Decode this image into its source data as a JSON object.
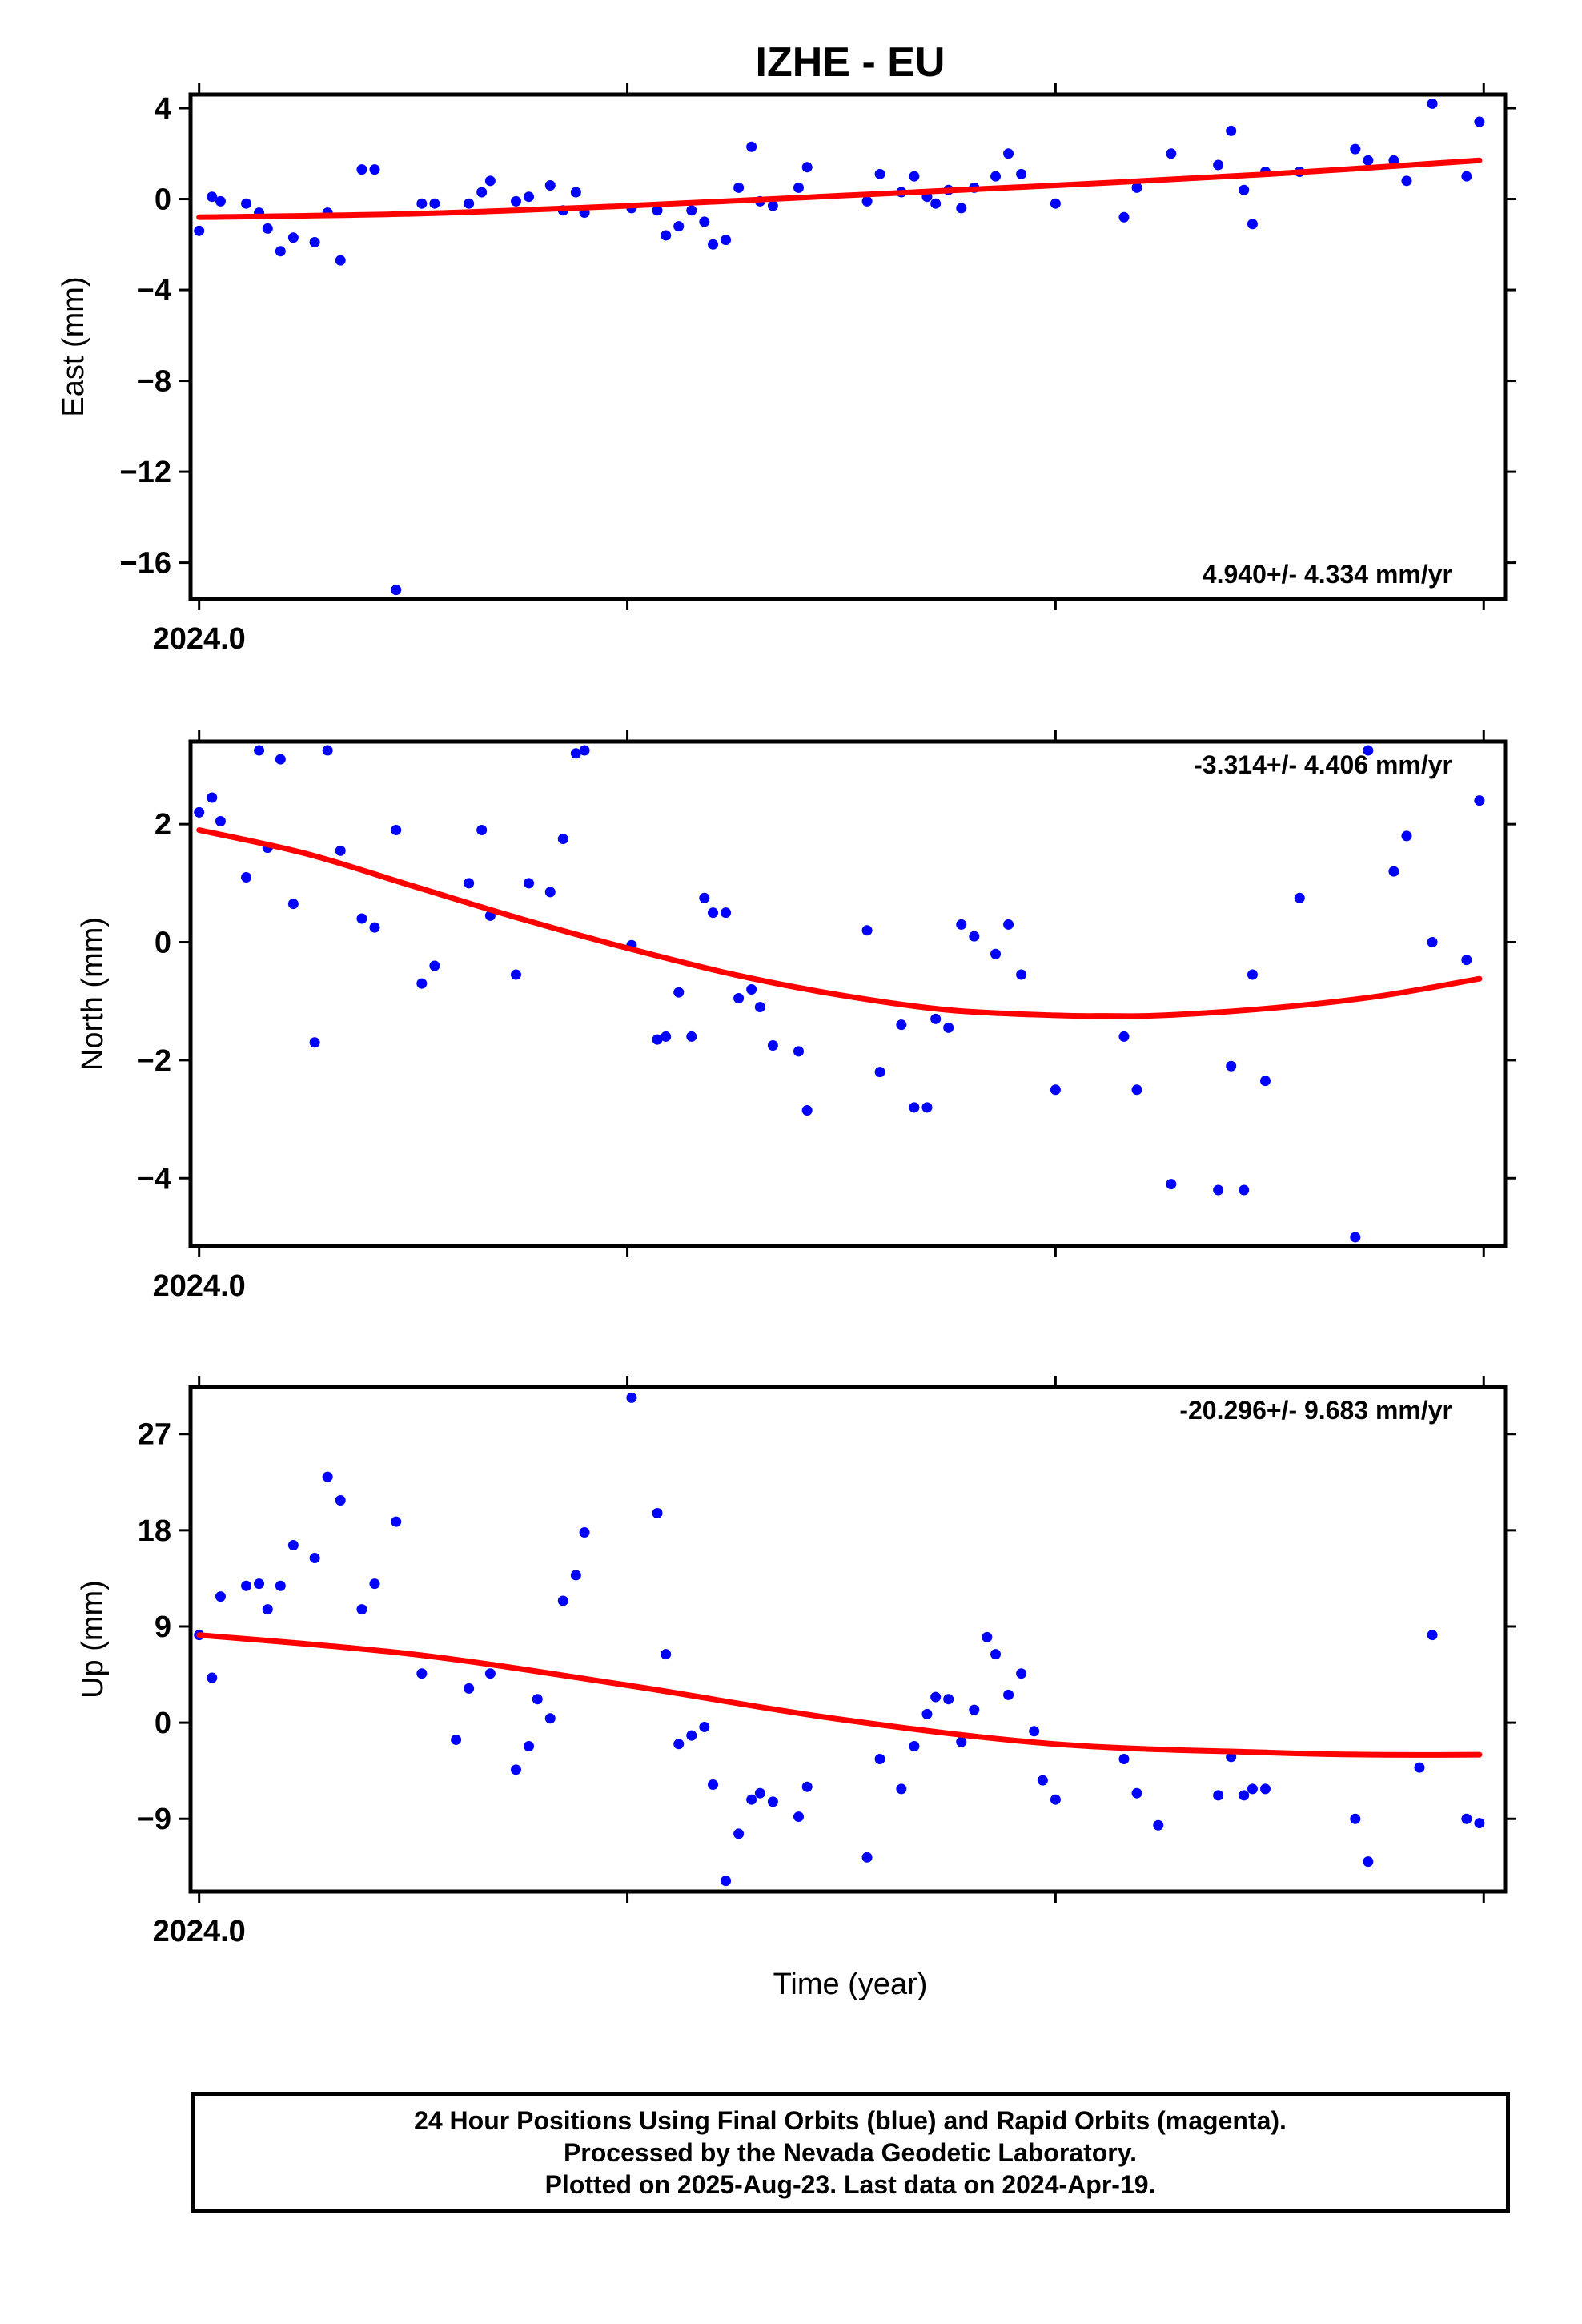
{
  "title": "IZHE - EU",
  "xlabel": "Time (year)",
  "x_tick_label": "2024.0",
  "footer": {
    "line1": "24 Hour Positions Using Final Orbits (blue) and Rapid Orbits (magenta).",
    "line2": "Processed by the Nevada Geodetic Laboratory.",
    "line3": "Plotted on 2025-Aug-23. Last data on 2024-Apr-19."
  },
  "colors": {
    "points": "#0000ff",
    "trend": "#ff0000",
    "frame": "#000000"
  },
  "chart_data": [
    {
      "type": "scatter",
      "ylabel": "East (mm)",
      "rate_label": "4.940+/- 4.334 mm/yr",
      "rate_position": "bottom-right",
      "xlim": [
        2023.998,
        2024.305
      ],
      "ylim": [
        -17.6,
        4.6
      ],
      "yticks": [
        4,
        0,
        -4,
        -8,
        -12,
        -16
      ],
      "ytick_labels": [
        "4",
        "0",
        "−4",
        "−8",
        "−12",
        "−16"
      ],
      "xticks": [
        2024.0,
        2024.1,
        2024.2,
        2024.3
      ],
      "x": [
        2024.0,
        2024.003,
        2024.005,
        2024.011,
        2024.014,
        2024.016,
        2024.019,
        2024.022,
        2024.027,
        2024.03,
        2024.033,
        2024.038,
        2024.041,
        2024.046,
        2024.052,
        2024.055,
        2024.063,
        2024.066,
        2024.068,
        2024.074,
        2024.077,
        2024.082,
        2024.085,
        2024.088,
        2024.09,
        2024.101,
        2024.107,
        2024.109,
        2024.112,
        2024.115,
        2024.118,
        2024.12,
        2024.123,
        2024.126,
        2024.129,
        2024.131,
        2024.134,
        2024.14,
        2024.142,
        2024.156,
        2024.159,
        2024.164,
        2024.167,
        2024.17,
        2024.172,
        2024.175,
        2024.178,
        2024.181,
        2024.186,
        2024.189,
        2024.192,
        2024.2,
        2024.216,
        2024.219,
        2024.227,
        2024.238,
        2024.241,
        2024.244,
        2024.246,
        2024.249,
        2024.257,
        2024.27,
        2024.273,
        2024.279,
        2024.282,
        2024.288,
        2024.296,
        2024.299
      ],
      "y": [
        -1.4,
        0.1,
        -0.1,
        -0.2,
        -0.6,
        -1.3,
        -2.3,
        -1.7,
        -1.9,
        -0.6,
        -2.7,
        1.3,
        1.3,
        -17.2,
        -0.2,
        -0.2,
        -0.2,
        0.3,
        0.8,
        -0.1,
        0.1,
        0.6,
        -0.5,
        0.3,
        -0.6,
        -0.4,
        -0.5,
        -1.6,
        -1.2,
        -0.5,
        -1.0,
        -2.0,
        -1.8,
        0.5,
        2.3,
        -0.1,
        -0.3,
        0.5,
        1.4,
        -0.1,
        1.1,
        0.3,
        1.0,
        0.1,
        -0.2,
        0.4,
        -0.4,
        0.5,
        1.0,
        2.0,
        1.1,
        -0.2,
        -0.8,
        0.5,
        2.0,
        1.5,
        3.0,
        0.4,
        -1.1,
        1.2,
        1.2,
        2.2,
        1.7,
        1.7,
        0.8,
        4.2,
        1.0,
        3.4
      ],
      "trend": {
        "x": [
          2024.0,
          2024.05,
          2024.1,
          2024.15,
          2024.2,
          2024.25,
          2024.299
        ],
        "y": [
          -0.8,
          -0.65,
          -0.3,
          0.15,
          0.6,
          1.1,
          1.7
        ]
      }
    },
    {
      "type": "scatter",
      "ylabel": "North (mm)",
      "rate_label": "-3.314+/- 4.406 mm/yr",
      "rate_position": "top-right",
      "xlim": [
        2023.998,
        2024.305
      ],
      "ylim": [
        -5.15,
        3.4
      ],
      "yticks": [
        2,
        0,
        -2,
        -4
      ],
      "ytick_labels": [
        "2",
        "0",
        "−2",
        "−4"
      ],
      "xticks": [
        2024.0,
        2024.1,
        2024.2,
        2024.3
      ],
      "x": [
        2024.0,
        2024.003,
        2024.005,
        2024.011,
        2024.014,
        2024.016,
        2024.019,
        2024.022,
        2024.027,
        2024.03,
        2024.033,
        2024.038,
        2024.041,
        2024.046,
        2024.052,
        2024.055,
        2024.063,
        2024.066,
        2024.068,
        2024.074,
        2024.077,
        2024.082,
        2024.085,
        2024.088,
        2024.09,
        2024.101,
        2024.107,
        2024.109,
        2024.112,
        2024.115,
        2024.118,
        2024.12,
        2024.123,
        2024.126,
        2024.129,
        2024.131,
        2024.134,
        2024.14,
        2024.142,
        2024.156,
        2024.159,
        2024.164,
        2024.167,
        2024.17,
        2024.172,
        2024.175,
        2024.178,
        2024.181,
        2024.186,
        2024.189,
        2024.192,
        2024.2,
        2024.216,
        2024.219,
        2024.227,
        2024.238,
        2024.241,
        2024.244,
        2024.246,
        2024.249,
        2024.257,
        2024.27,
        2024.273,
        2024.279,
        2024.282,
        2024.288,
        2024.296,
        2024.299
      ],
      "y": [
        2.2,
        2.45,
        2.05,
        1.1,
        3.25,
        1.6,
        3.1,
        0.65,
        -1.7,
        3.25,
        1.55,
        0.4,
        0.25,
        1.9,
        -0.7,
        -0.4,
        1.0,
        1.9,
        0.45,
        -0.55,
        1.0,
        0.85,
        1.75,
        3.2,
        3.25,
        -0.05,
        -1.65,
        -1.6,
        -0.85,
        -1.6,
        0.75,
        0.5,
        0.5,
        -0.95,
        -0.8,
        -1.1,
        -1.75,
        -1.85,
        -2.85,
        0.2,
        -2.2,
        -1.4,
        -2.8,
        -2.8,
        -1.3,
        -1.45,
        0.3,
        0.1,
        -0.2,
        0.3,
        -0.55,
        -2.5,
        -1.6,
        -2.5,
        -4.1,
        -4.2,
        -2.1,
        -4.2,
        -0.55,
        -2.35,
        0.75,
        -5.0,
        3.25,
        1.2,
        1.8,
        0.0,
        -0.3,
        2.4
      ],
      "trend": {
        "x": [
          2024.0,
          2024.025,
          2024.05,
          2024.075,
          2024.1,
          2024.125,
          2024.15,
          2024.175,
          2024.2,
          2024.212,
          2024.225,
          2024.25,
          2024.275,
          2024.299
        ],
        "y": [
          1.9,
          1.5,
          0.95,
          0.4,
          -0.1,
          -0.55,
          -0.9,
          -1.15,
          -1.24,
          -1.25,
          -1.24,
          -1.12,
          -0.92,
          -0.62
        ]
      }
    },
    {
      "type": "scatter",
      "ylabel": "Up (mm)",
      "rate_label": "-20.296+/- 9.683 mm/yr",
      "rate_position": "top-right",
      "xlim": [
        2023.998,
        2024.305
      ],
      "ylim": [
        -15.8,
        31.4
      ],
      "yticks": [
        27,
        18,
        9,
        0,
        -9
      ],
      "ytick_labels": [
        "27",
        "18",
        "9",
        "0",
        "−9"
      ],
      "xticks": [
        2024.0,
        2024.1,
        2024.2,
        2024.3
      ],
      "x": [
        2024.0,
        2024.003,
        2024.005,
        2024.011,
        2024.014,
        2024.016,
        2024.019,
        2024.022,
        2024.027,
        2024.03,
        2024.033,
        2024.038,
        2024.041,
        2024.046,
        2024.052,
        2024.06,
        2024.063,
        2024.068,
        2024.074,
        2024.077,
        2024.079,
        2024.082,
        2024.085,
        2024.088,
        2024.09,
        2024.101,
        2024.107,
        2024.109,
        2024.112,
        2024.115,
        2024.118,
        2024.12,
        2024.123,
        2024.126,
        2024.129,
        2024.131,
        2024.134,
        2024.14,
        2024.142,
        2024.156,
        2024.159,
        2024.164,
        2024.167,
        2024.17,
        2024.172,
        2024.175,
        2024.178,
        2024.181,
        2024.184,
        2024.186,
        2024.189,
        2024.192,
        2024.195,
        2024.197,
        2024.2,
        2024.216,
        2024.219,
        2024.224,
        2024.238,
        2024.241,
        2024.244,
        2024.246,
        2024.249,
        2024.27,
        2024.273,
        2024.285,
        2024.288,
        2024.296,
        2024.299
      ],
      "y": [
        8.2,
        4.2,
        11.8,
        12.8,
        13.0,
        10.6,
        12.8,
        16.6,
        15.4,
        23.0,
        20.8,
        10.6,
        13.0,
        18.8,
        4.6,
        -1.6,
        3.2,
        4.6,
        -4.4,
        -2.2,
        2.2,
        0.4,
        11.4,
        13.8,
        17.8,
        30.4,
        19.6,
        6.4,
        -2.0,
        -1.2,
        -0.4,
        -5.8,
        -14.8,
        -10.4,
        -7.2,
        -6.6,
        -7.4,
        -8.8,
        -6.0,
        -12.6,
        -3.4,
        -6.2,
        -2.2,
        0.8,
        2.4,
        2.2,
        -1.8,
        1.2,
        8.0,
        6.4,
        2.6,
        4.6,
        -0.8,
        -5.4,
        -7.2,
        -3.4,
        -6.6,
        -9.6,
        -6.8,
        -3.2,
        -6.8,
        -6.2,
        -6.2,
        -9.0,
        -13.0,
        -4.2,
        8.2,
        -9.0,
        -9.4
      ],
      "trend": {
        "x": [
          2024.0,
          2024.05,
          2024.1,
          2024.15,
          2024.2,
          2024.25,
          2024.275,
          2024.299
        ],
        "y": [
          8.2,
          6.4,
          3.5,
          0.3,
          -2.0,
          -2.8,
          -3.0,
          -3.0
        ]
      }
    }
  ]
}
